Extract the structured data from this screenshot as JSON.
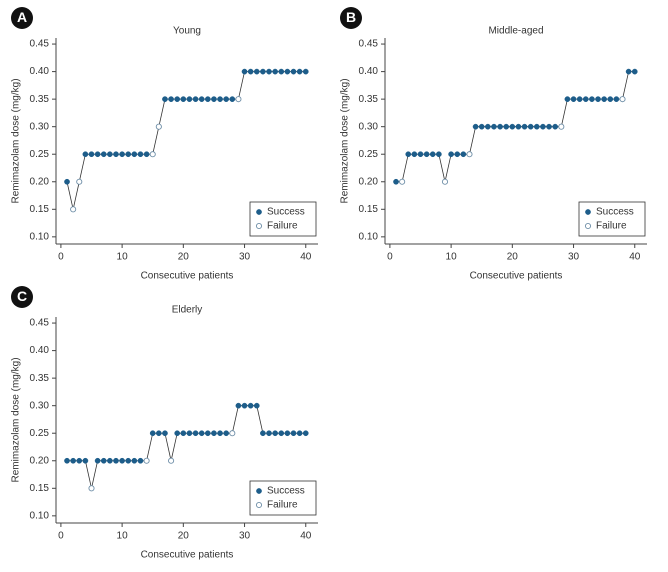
{
  "chart_data": [
    {
      "type": "line",
      "label": "A",
      "title": "Young",
      "xlabel": "Consecutive patients",
      "ylabel": "Remimazolam dose (mg/kg)",
      "x": [
        1,
        2,
        3,
        4,
        5,
        6,
        7,
        8,
        9,
        10,
        11,
        12,
        13,
        14,
        15,
        16,
        17,
        18,
        19,
        20,
        21,
        22,
        23,
        24,
        25,
        26,
        27,
        28,
        29,
        30,
        31,
        32,
        33,
        34,
        35,
        36,
        37,
        38,
        39,
        40
      ],
      "series": [
        {
          "name": "Success",
          "color": "#1d5d8a",
          "marker": "filled",
          "values": [
            0.2,
            null,
            null,
            0.25,
            0.25,
            0.25,
            0.25,
            0.25,
            0.25,
            0.25,
            0.25,
            0.25,
            0.25,
            0.25,
            null,
            null,
            0.35,
            0.35,
            0.35,
            0.35,
            0.35,
            0.35,
            0.35,
            0.35,
            0.35,
            0.35,
            0.35,
            0.35,
            null,
            0.4,
            0.4,
            0.4,
            0.4,
            0.4,
            0.4,
            0.4,
            0.4,
            0.4,
            0.4,
            0.4
          ]
        },
        {
          "name": "Failure",
          "color": "#6f8fa8",
          "marker": "open",
          "values": [
            null,
            0.15,
            0.2,
            null,
            null,
            null,
            null,
            null,
            null,
            null,
            null,
            null,
            null,
            null,
            0.25,
            0.3,
            null,
            null,
            null,
            null,
            null,
            null,
            null,
            null,
            null,
            null,
            null,
            null,
            0.35,
            null,
            null,
            null,
            null,
            null,
            null,
            null,
            null,
            null,
            null,
            null
          ]
        }
      ],
      "xlim": [
        -0.8,
        42
      ],
      "xticks": [
        0,
        10,
        20,
        30,
        40
      ],
      "ylim": [
        0.087,
        0.461
      ],
      "yticks": [
        {
          "value": 0.1,
          "label": "0.10"
        },
        0.15,
        {
          "value": 0.2,
          "label": "0.20"
        },
        0.25,
        {
          "value": 0.3,
          "label": "0.30"
        },
        0.35,
        {
          "value": 0.4,
          "label": "0.40"
        },
        0.45
      ],
      "legend": "lower right"
    },
    {
      "type": "line",
      "label": "B",
      "title": "Middle-aged",
      "xlabel": "Consecutive patients",
      "ylabel": "Remimazolam dose (mg/kg)",
      "x": [
        1,
        2,
        3,
        4,
        5,
        6,
        7,
        8,
        9,
        10,
        11,
        12,
        13,
        14,
        15,
        16,
        17,
        18,
        19,
        20,
        21,
        22,
        23,
        24,
        25,
        26,
        27,
        28,
        29,
        30,
        31,
        32,
        33,
        34,
        35,
        36,
        37,
        38,
        39,
        40
      ],
      "series": [
        {
          "name": "Success",
          "color": "#1d5d8a",
          "marker": "filled",
          "values": [
            0.2,
            null,
            0.25,
            0.25,
            0.25,
            0.25,
            0.25,
            0.25,
            null,
            0.25,
            0.25,
            0.25,
            null,
            0.3,
            0.3,
            0.3,
            0.3,
            0.3,
            0.3,
            0.3,
            0.3,
            0.3,
            0.3,
            0.3,
            0.3,
            0.3,
            0.3,
            null,
            0.35,
            0.35,
            0.35,
            0.35,
            0.35,
            0.35,
            0.35,
            0.35,
            0.35,
            null,
            0.4,
            0.4
          ]
        },
        {
          "name": "Failure",
          "color": "#6f8fa8",
          "marker": "open",
          "values": [
            null,
            0.2,
            null,
            null,
            null,
            null,
            null,
            null,
            0.2,
            null,
            null,
            null,
            0.25,
            null,
            null,
            null,
            null,
            null,
            null,
            null,
            null,
            null,
            null,
            null,
            null,
            null,
            null,
            0.3,
            null,
            null,
            null,
            null,
            null,
            null,
            null,
            null,
            null,
            0.35,
            null,
            null
          ]
        }
      ],
      "xlim": [
        -0.8,
        42
      ],
      "xticks": [
        0,
        10,
        20,
        30,
        40
      ],
      "ylim": [
        0.087,
        0.461
      ],
      "yticks": [
        {
          "value": 0.1,
          "label": "0.10"
        },
        0.15,
        {
          "value": 0.2,
          "label": "0.20"
        },
        0.25,
        {
          "value": 0.3,
          "label": "0.30"
        },
        0.35,
        {
          "value": 0.4,
          "label": "0.40"
        },
        0.45
      ],
      "legend": "lower right"
    },
    {
      "type": "line",
      "label": "C",
      "title": "Elderly",
      "xlabel": "Consecutive patients",
      "ylabel": "Remimazolam dose (mg/kg)",
      "x": [
        1,
        2,
        3,
        4,
        5,
        6,
        7,
        8,
        9,
        10,
        11,
        12,
        13,
        14,
        15,
        16,
        17,
        18,
        19,
        20,
        21,
        22,
        23,
        24,
        25,
        26,
        27,
        28,
        29,
        30,
        31,
        32,
        33,
        34,
        35,
        36,
        37,
        38,
        39,
        40
      ],
      "series": [
        {
          "name": "Success",
          "color": "#1d5d8a",
          "marker": "filled",
          "values": [
            0.2,
            0.2,
            0.2,
            0.2,
            null,
            0.2,
            0.2,
            0.2,
            0.2,
            0.2,
            0.2,
            0.2,
            0.2,
            null,
            0.25,
            0.25,
            0.25,
            null,
            0.25,
            0.25,
            0.25,
            0.25,
            0.25,
            0.25,
            0.25,
            0.25,
            0.25,
            null,
            0.3,
            0.3,
            0.3,
            0.3,
            0.25,
            0.25,
            0.25,
            0.25,
            0.25,
            0.25,
            0.25,
            0.25
          ]
        },
        {
          "name": "Failure",
          "color": "#6f8fa8",
          "marker": "open",
          "values": [
            null,
            null,
            null,
            null,
            0.15,
            null,
            null,
            null,
            null,
            null,
            null,
            null,
            null,
            0.2,
            null,
            null,
            null,
            0.2,
            null,
            null,
            null,
            null,
            null,
            null,
            null,
            null,
            null,
            0.25,
            null,
            null,
            null,
            null,
            null,
            null,
            null,
            null,
            null,
            null,
            null,
            null
          ]
        }
      ],
      "xlim": [
        -0.8,
        42
      ],
      "xticks": [
        0,
        10,
        20,
        30,
        40
      ],
      "ylim": [
        0.087,
        0.461
      ],
      "yticks": [
        {
          "value": 0.1,
          "label": "0.10"
        },
        0.15,
        {
          "value": 0.2,
          "label": "0.20"
        },
        0.25,
        {
          "value": 0.3,
          "label": "0.30"
        },
        0.35,
        {
          "value": 0.4,
          "label": "0.40"
        },
        0.45
      ],
      "legend": "lower right"
    }
  ]
}
